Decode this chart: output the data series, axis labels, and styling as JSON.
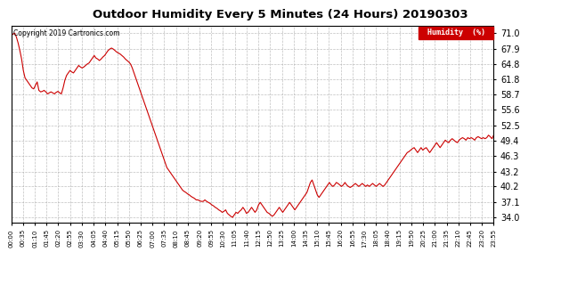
{
  "title": "Outdoor Humidity Every 5 Minutes (24 Hours) 20190303",
  "copyright_text": "Copyright 2019 Cartronics.com",
  "line_color": "#cc0000",
  "background_color": "#ffffff",
  "grid_color": "#b0b0b0",
  "yticks": [
    34.0,
    37.1,
    40.2,
    43.2,
    46.3,
    49.4,
    52.5,
    55.6,
    58.7,
    61.8,
    64.8,
    67.9,
    71.0
  ],
  "ylim": [
    33.0,
    72.5
  ],
  "legend_label": "Humidity  (%)",
  "legend_bg": "#cc0000",
  "legend_text_color": "#ffffff",
  "x_tick_labels": [
    "00:00",
    "00:35",
    "01:10",
    "01:45",
    "02:20",
    "02:55",
    "03:30",
    "04:05",
    "04:40",
    "05:15",
    "05:50",
    "06:25",
    "07:00",
    "07:35",
    "08:10",
    "08:45",
    "09:20",
    "09:55",
    "10:30",
    "11:05",
    "11:40",
    "12:15",
    "12:50",
    "13:25",
    "14:00",
    "14:35",
    "15:10",
    "15:45",
    "16:20",
    "16:55",
    "17:30",
    "18:05",
    "18:40",
    "19:15",
    "19:50",
    "20:25",
    "21:00",
    "21:35",
    "22:10",
    "22:45",
    "23:20",
    "23:55"
  ],
  "humidity_data": [
    70.5,
    70.8,
    71.0,
    70.2,
    69.0,
    67.5,
    65.8,
    63.5,
    62.0,
    61.5,
    61.0,
    60.5,
    60.0,
    59.8,
    60.5,
    61.2,
    59.5,
    59.2,
    59.3,
    59.5,
    59.2,
    58.8,
    59.0,
    59.2,
    59.0,
    58.8,
    59.1,
    59.3,
    59.0,
    58.8,
    60.0,
    61.5,
    62.5,
    63.0,
    63.5,
    63.2,
    63.0,
    63.5,
    64.0,
    64.5,
    64.2,
    64.0,
    64.2,
    64.5,
    64.8,
    65.0,
    65.5,
    66.0,
    66.5,
    66.0,
    65.8,
    65.5,
    65.8,
    66.2,
    66.5,
    67.0,
    67.5,
    67.8,
    68.0,
    67.8,
    67.5,
    67.2,
    67.0,
    66.8,
    66.5,
    66.2,
    65.8,
    65.5,
    65.2,
    64.8,
    64.0,
    63.0,
    62.0,
    61.0,
    60.0,
    59.0,
    58.0,
    57.0,
    56.0,
    55.0,
    54.0,
    53.0,
    52.0,
    51.0,
    50.0,
    49.0,
    48.0,
    47.0,
    46.0,
    45.0,
    44.0,
    43.5,
    43.0,
    42.5,
    42.0,
    41.5,
    41.0,
    40.5,
    40.0,
    39.5,
    39.2,
    39.0,
    38.7,
    38.5,
    38.2,
    38.0,
    37.8,
    37.5,
    37.5,
    37.3,
    37.2,
    37.2,
    37.5,
    37.2,
    37.0,
    36.8,
    36.5,
    36.3,
    36.0,
    35.8,
    35.5,
    35.3,
    35.0,
    35.2,
    35.5,
    34.8,
    34.5,
    34.2,
    34.0,
    34.5,
    35.0,
    34.8,
    35.2,
    35.5,
    36.0,
    35.5,
    34.8,
    35.0,
    35.5,
    36.0,
    35.5,
    35.0,
    35.5,
    36.5,
    37.0,
    36.5,
    36.0,
    35.5,
    35.0,
    34.8,
    34.5,
    34.2,
    34.5,
    35.0,
    35.5,
    36.0,
    35.5,
    35.0,
    35.5,
    36.0,
    36.5,
    37.0,
    36.5,
    36.0,
    35.5,
    36.0,
    36.5,
    37.0,
    37.5,
    38.0,
    38.5,
    39.0,
    40.0,
    41.0,
    41.5,
    40.5,
    39.5,
    38.5,
    38.0,
    38.5,
    39.0,
    39.5,
    40.0,
    40.5,
    41.0,
    40.5,
    40.2,
    40.5,
    41.0,
    40.8,
    40.5,
    40.2,
    40.5,
    41.0,
    40.5,
    40.2,
    40.0,
    40.2,
    40.5,
    40.8,
    40.5,
    40.2,
    40.5,
    40.8,
    40.5,
    40.2,
    40.5,
    40.2,
    40.5,
    40.8,
    40.5,
    40.2,
    40.5,
    40.8,
    40.5,
    40.2,
    40.5,
    41.0,
    41.5,
    42.0,
    42.5,
    43.0,
    43.5,
    44.0,
    44.5,
    45.0,
    45.5,
    46.0,
    46.5,
    47.0,
    47.2,
    47.5,
    47.8,
    48.0,
    47.5,
    47.0,
    47.5,
    48.0,
    47.5,
    47.8,
    48.0,
    47.5,
    47.0,
    47.5,
    48.0,
    48.5,
    49.0,
    48.5,
    48.0,
    48.5,
    49.0,
    49.5,
    49.2,
    49.0,
    49.5,
    49.8,
    49.5,
    49.2,
    49.0,
    49.5,
    49.8,
    50.0,
    49.8,
    49.5,
    50.0,
    49.8,
    50.0,
    49.8,
    49.5,
    50.0,
    50.2,
    50.0,
    49.8,
    50.0,
    49.8,
    50.0,
    50.5,
    50.2,
    49.8,
    50.5
  ]
}
